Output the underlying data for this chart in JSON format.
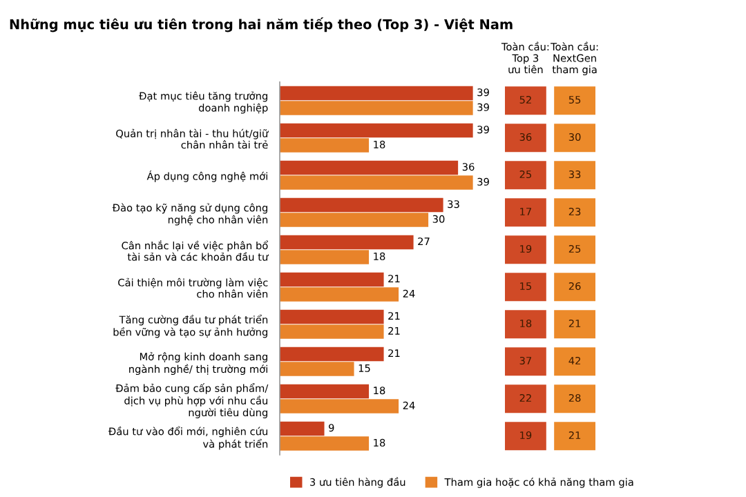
{
  "chart_data": [
    {
      "type": "bar",
      "orientation": "horizontal",
      "title": "Những mục tiêu ưu tiên trong hai năm tiếp theo (Top 3) - Việt Nam",
      "categories": [
        "Đạt mục tiêu tăng trưởng\ndoanh nghiệp",
        "Quản trị nhân tài - thu hút/giữ\nchân nhân tài trẻ",
        "Áp dụng công nghệ mới",
        "Đào tạo kỹ năng sử dụng công\nnghệ cho nhân viên",
        "Cân nhắc lại về việc phân bổ\ntài sản và các khoản đầu tư",
        "Cải thiện môi trường làm việc\ncho nhân viên",
        "Tăng cường đầu tư phát triển\nbền vững và tạo sự ảnh hưởng",
        "Mở rộng kinh doanh sang\nngành nghề/ thị trường mới",
        "Đảm bảo cung cấp sản phẩm/\ndịch vụ phù hợp với nhu cầu\nngười tiêu dùng",
        "Đầu tư vào đổi mới, nghiên cứu\nvà phát triển"
      ],
      "series": [
        {
          "name": "3 ưu tiên hàng đầu",
          "color": "#c9401f",
          "values": [
            39,
            39,
            36,
            33,
            27,
            21,
            21,
            21,
            18,
            9
          ]
        },
        {
          "name": "Tham gia hoặc có khả năng tham gia",
          "color": "#e8832a",
          "values": [
            39,
            18,
            39,
            30,
            18,
            24,
            21,
            15,
            24,
            18
          ]
        }
      ],
      "data_labels": true,
      "legend": "bottom"
    },
    {
      "type": "heatmap",
      "categories": [
        "Toàn cầu:\nTop 3\nưu tiên",
        "Toàn cầu:\nNextGen\ntham gia"
      ],
      "y_categories": [
        null,
        null,
        null,
        null,
        null,
        null,
        null,
        null,
        null,
        null
      ],
      "cells": [
        [
          52,
          55
        ],
        [
          36,
          30
        ],
        [
          25,
          33
        ],
        [
          17,
          23
        ],
        [
          19,
          25
        ],
        [
          15,
          26
        ],
        [
          18,
          21
        ],
        [
          37,
          42
        ],
        [
          22,
          28
        ],
        [
          19,
          21
        ]
      ],
      "colors": [
        "#d04a26",
        "#ec8a2a"
      ],
      "data_labels": true
    }
  ]
}
